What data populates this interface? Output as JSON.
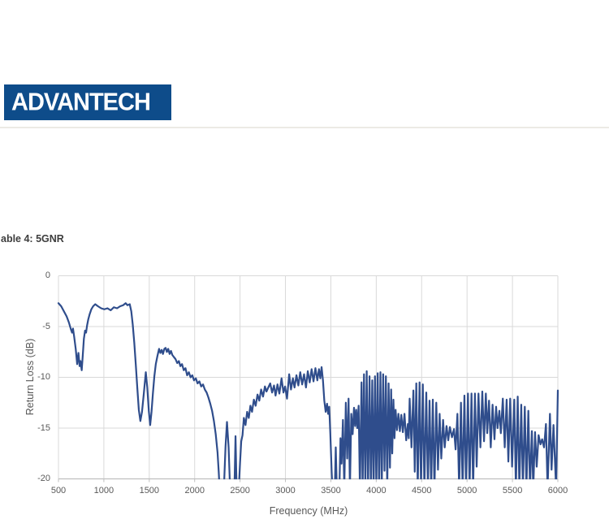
{
  "logo": {
    "text": "ADVANTECH",
    "bg_color": "#0E4C8A",
    "text_color": "#ffffff"
  },
  "caption": {
    "text": "able 4: 5GNR"
  },
  "chart_data": {
    "type": "line",
    "title": "",
    "xlabel": "Frequency (MHz)",
    "ylabel": "Return Loss (dB)",
    "xlim": [
      500,
      6000
    ],
    "ylim": [
      -20,
      0
    ],
    "x_ticks": [
      500,
      1000,
      1500,
      2000,
      2500,
      3000,
      3500,
      4000,
      4500,
      5000,
      5500,
      6000
    ],
    "y_ticks": [
      0,
      -5,
      -10,
      -15,
      -20
    ],
    "grid": true,
    "legend": "none",
    "line_color": "#2F4D8C",
    "gridline_color": "#D9D9D9",
    "axis_color": "#BFBFBF",
    "tick_label_color": "#595959",
    "clip_note": "values of -21 represent dips clipped below the -20 dB axis minimum",
    "points": [
      [
        500,
        -2.7
      ],
      [
        530,
        -3.0
      ],
      [
        560,
        -3.5
      ],
      [
        590,
        -4.0
      ],
      [
        615,
        -4.6
      ],
      [
        638,
        -5.3
      ],
      [
        650,
        -5.6
      ],
      [
        660,
        -5.2
      ],
      [
        673,
        -6.0
      ],
      [
        690,
        -7.2
      ],
      [
        706,
        -8.7
      ],
      [
        720,
        -7.6
      ],
      [
        733,
        -8.9
      ],
      [
        742,
        -8.4
      ],
      [
        756,
        -9.3
      ],
      [
        768,
        -7.8
      ],
      [
        780,
        -6.2
      ],
      [
        793,
        -5.4
      ],
      [
        804,
        -5.6
      ],
      [
        815,
        -4.9
      ],
      [
        828,
        -4.3
      ],
      [
        843,
        -3.8
      ],
      [
        862,
        -3.3
      ],
      [
        882,
        -3.0
      ],
      [
        905,
        -2.8
      ],
      [
        935,
        -3.0
      ],
      [
        970,
        -3.2
      ],
      [
        1005,
        -3.3
      ],
      [
        1040,
        -3.2
      ],
      [
        1075,
        -3.4
      ],
      [
        1110,
        -3.1
      ],
      [
        1145,
        -3.2
      ],
      [
        1180,
        -3.0
      ],
      [
        1212,
        -2.9
      ],
      [
        1240,
        -2.7
      ],
      [
        1260,
        -2.9
      ],
      [
        1285,
        -2.8
      ],
      [
        1302,
        -3.5
      ],
      [
        1318,
        -4.8
      ],
      [
        1335,
        -6.6
      ],
      [
        1352,
        -8.8
      ],
      [
        1368,
        -11.0
      ],
      [
        1385,
        -13.2
      ],
      [
        1402,
        -14.3
      ],
      [
        1420,
        -13.4
      ],
      [
        1440,
        -11.6
      ],
      [
        1462,
        -9.5
      ],
      [
        1478,
        -11.0
      ],
      [
        1495,
        -13.3
      ],
      [
        1510,
        -14.7
      ],
      [
        1525,
        -13.4
      ],
      [
        1540,
        -11.6
      ],
      [
        1556,
        -9.9
      ],
      [
        1572,
        -8.7
      ],
      [
        1590,
        -7.9
      ],
      [
        1608,
        -7.2
      ],
      [
        1623,
        -7.6
      ],
      [
        1637,
        -7.3
      ],
      [
        1651,
        -7.7
      ],
      [
        1666,
        -7.2
      ],
      [
        1680,
        -7.1
      ],
      [
        1694,
        -7.5
      ],
      [
        1709,
        -7.2
      ],
      [
        1724,
        -7.7
      ],
      [
        1739,
        -7.4
      ],
      [
        1754,
        -7.8
      ],
      [
        1771,
        -8.0
      ],
      [
        1789,
        -8.2
      ],
      [
        1808,
        -8.6
      ],
      [
        1826,
        -8.4
      ],
      [
        1843,
        -8.9
      ],
      [
        1861,
        -8.7
      ],
      [
        1880,
        -9.3
      ],
      [
        1899,
        -9.1
      ],
      [
        1917,
        -9.8
      ],
      [
        1936,
        -9.5
      ],
      [
        1955,
        -10.0
      ],
      [
        1974,
        -9.8
      ],
      [
        1993,
        -10.3
      ],
      [
        2013,
        -10.1
      ],
      [
        2032,
        -10.6
      ],
      [
        2052,
        -10.4
      ],
      [
        2072,
        -10.9
      ],
      [
        2092,
        -10.7
      ],
      [
        2112,
        -11.2
      ],
      [
        2132,
        -11.5
      ],
      [
        2152,
        -12.0
      ],
      [
        2172,
        -12.6
      ],
      [
        2192,
        -13.3
      ],
      [
        2212,
        -14.3
      ],
      [
        2232,
        -15.6
      ],
      [
        2252,
        -17.4
      ],
      [
        2265,
        -19.3
      ],
      [
        2275,
        -21
      ],
      [
        2322,
        -21
      ],
      [
        2340,
        -16.8
      ],
      [
        2356,
        -14.4
      ],
      [
        2374,
        -16.9
      ],
      [
        2390,
        -21
      ],
      [
        2438,
        -21
      ],
      [
        2450,
        -15.8
      ],
      [
        2462,
        -21
      ],
      [
        2486,
        -21
      ],
      [
        2500,
        -18.4
      ],
      [
        2513,
        -16.3
      ],
      [
        2527,
        -15.7
      ],
      [
        2542,
        -14.0
      ],
      [
        2560,
        -14.7
      ],
      [
        2578,
        -13.4
      ],
      [
        2596,
        -14.0
      ],
      [
        2614,
        -12.8
      ],
      [
        2632,
        -13.4
      ],
      [
        2652,
        -12.2
      ],
      [
        2672,
        -12.8
      ],
      [
        2692,
        -11.7
      ],
      [
        2712,
        -12.3
      ],
      [
        2732,
        -11.2
      ],
      [
        2753,
        -11.9
      ],
      [
        2774,
        -10.9
      ],
      [
        2791,
        -11.4
      ],
      [
        2811,
        -11.0
      ],
      [
        2832,
        -10.6
      ],
      [
        2853,
        -11.5
      ],
      [
        2874,
        -10.8
      ],
      [
        2891,
        -11.8
      ],
      [
        2912,
        -10.7
      ],
      [
        2933,
        -11.6
      ],
      [
        2957,
        -10.1
      ],
      [
        2978,
        -11.5
      ],
      [
        2996,
        -10.9
      ],
      [
        3017,
        -12.1
      ],
      [
        3041,
        -9.7
      ],
      [
        3061,
        -11.2
      ],
      [
        3082,
        -10.1
      ],
      [
        3100,
        -11.0
      ],
      [
        3121,
        -9.8
      ],
      [
        3142,
        -10.8
      ],
      [
        3163,
        -9.5
      ],
      [
        3184,
        -10.7
      ],
      [
        3205,
        -9.7
      ],
      [
        3226,
        -11.0
      ],
      [
        3246,
        -9.4
      ],
      [
        3267,
        -10.5
      ],
      [
        3288,
        -9.2
      ],
      [
        3309,
        -10.4
      ],
      [
        3330,
        -9.1
      ],
      [
        3351,
        -10.3
      ],
      [
        3369,
        -9.2
      ],
      [
        3384,
        -10.1
      ],
      [
        3398,
        -9.0
      ],
      [
        3413,
        -10.3
      ],
      [
        3428,
        -12.3
      ],
      [
        3443,
        -13.4
      ],
      [
        3458,
        -12.6
      ],
      [
        3470,
        -13.6
      ],
      [
        3482,
        -12.9
      ],
      [
        3494,
        -15.5
      ],
      [
        3509,
        -19.3
      ],
      [
        3518,
        -21
      ],
      [
        3544,
        -21
      ],
      [
        3554,
        -16.9
      ],
      [
        3566,
        -21
      ],
      [
        3594,
        -21
      ],
      [
        3606,
        -16.0
      ],
      [
        3618,
        -18.5
      ],
      [
        3633,
        -14.2
      ],
      [
        3648,
        -21
      ],
      [
        3665,
        -12.5
      ],
      [
        3680,
        -18.0
      ],
      [
        3695,
        -12.1
      ],
      [
        3710,
        -21
      ],
      [
        3725,
        -13.6
      ],
      [
        3740,
        -15.6
      ],
      [
        3755,
        -13.0
      ],
      [
        3767,
        -14.8
      ],
      [
        3779,
        -13.2
      ],
      [
        3791,
        -15.0
      ],
      [
        3806,
        -12.8
      ],
      [
        3820,
        -21
      ],
      [
        3838,
        -10.5
      ],
      [
        3850,
        -21
      ],
      [
        3865,
        -9.7
      ],
      [
        3880,
        -21
      ],
      [
        3895,
        -9.4
      ],
      [
        3910,
        -21
      ],
      [
        3926,
        -9.9
      ],
      [
        3941,
        -21
      ],
      [
        3956,
        -10.3
      ],
      [
        3971,
        -21
      ],
      [
        3986,
        -9.9
      ],
      [
        4001,
        -21
      ],
      [
        4016,
        -9.6
      ],
      [
        4031,
        -21
      ],
      [
        4046,
        -9.5
      ],
      [
        4061,
        -21
      ],
      [
        4076,
        -9.7
      ],
      [
        4091,
        -19.2
      ],
      [
        4106,
        -9.9
      ],
      [
        4121,
        -21
      ],
      [
        4136,
        -10.6
      ],
      [
        4151,
        -18.9
      ],
      [
        4164,
        -11.2
      ],
      [
        4176,
        -17.5
      ],
      [
        4189,
        -12.2
      ],
      [
        4201,
        -16.0
      ],
      [
        4213,
        -13.2
      ],
      [
        4228,
        -15.2
      ],
      [
        4244,
        -13.6
      ],
      [
        4260,
        -15.3
      ],
      [
        4276,
        -13.7
      ],
      [
        4293,
        -15.4
      ],
      [
        4311,
        -13.6
      ],
      [
        4330,
        -16.2
      ],
      [
        4348,
        -14.6
      ],
      [
        4358,
        -16.0
      ],
      [
        4368,
        -12.1
      ],
      [
        4388,
        -16.9
      ],
      [
        4409,
        -11.3
      ],
      [
        4424,
        -19.3
      ],
      [
        4441,
        -10.6
      ],
      [
        4457,
        -21
      ],
      [
        4477,
        -10.5
      ],
      [
        4493,
        -21
      ],
      [
        4513,
        -10.7
      ],
      [
        4530,
        -21
      ],
      [
        4551,
        -11.5
      ],
      [
        4569,
        -21
      ],
      [
        4587,
        -12.3
      ],
      [
        4605,
        -21
      ],
      [
        4623,
        -12.2
      ],
      [
        4641,
        -21
      ],
      [
        4661,
        -12.5
      ],
      [
        4680,
        -19.1
      ],
      [
        4698,
        -13.6
      ],
      [
        4716,
        -18.0
      ],
      [
        4736,
        -14.2
      ],
      [
        4754,
        -16.9
      ],
      [
        4774,
        -14.8
      ],
      [
        4793,
        -16.2
      ],
      [
        4811,
        -14.9
      ],
      [
        4834,
        -15.9
      ],
      [
        4856,
        -15.1
      ],
      [
        4874,
        -17.1
      ],
      [
        4894,
        -13.6
      ],
      [
        4913,
        -21
      ],
      [
        4933,
        -12.5
      ],
      [
        4951,
        -21
      ],
      [
        4971,
        -11.8
      ],
      [
        4989,
        -21
      ],
      [
        5010,
        -11.6
      ],
      [
        5028,
        -21
      ],
      [
        5049,
        -11.6
      ],
      [
        5067,
        -21
      ],
      [
        5087,
        -11.6
      ],
      [
        5106,
        -18.8
      ],
      [
        5126,
        -11.6
      ],
      [
        5147,
        -16.9
      ],
      [
        5168,
        -11.4
      ],
      [
        5187,
        -16.3
      ],
      [
        5207,
        -11.6
      ],
      [
        5222,
        -15.5
      ],
      [
        5242,
        -12.3
      ],
      [
        5261,
        -16.9
      ],
      [
        5281,
        -12.7
      ],
      [
        5302,
        -16.1
      ],
      [
        5320,
        -12.9
      ],
      [
        5336,
        -15.0
      ],
      [
        5356,
        -13.3
      ],
      [
        5372,
        -15.5
      ],
      [
        5394,
        -12.1
      ],
      [
        5415,
        -16.9
      ],
      [
        5436,
        -12.2
      ],
      [
        5455,
        -18.3
      ],
      [
        5475,
        -12.1
      ],
      [
        5496,
        -18.8
      ],
      [
        5520,
        -12.2
      ],
      [
        5538,
        -21
      ],
      [
        5558,
        -11.9
      ],
      [
        5576,
        -21
      ],
      [
        5597,
        -12.7
      ],
      [
        5615,
        -21
      ],
      [
        5636,
        -12.9
      ],
      [
        5654,
        -21
      ],
      [
        5675,
        -13.3
      ],
      [
        5693,
        -21
      ],
      [
        5714,
        -15.3
      ],
      [
        5729,
        -21
      ],
      [
        5749,
        -15.4
      ],
      [
        5767,
        -18.8
      ],
      [
        5788,
        -15.7
      ],
      [
        5809,
        -16.6
      ],
      [
        5827,
        -16.1
      ],
      [
        5848,
        -16.9
      ],
      [
        5869,
        -14.6
      ],
      [
        5887,
        -21
      ],
      [
        5913,
        -13.6
      ],
      [
        5931,
        -19.1
      ],
      [
        5952,
        -14.7
      ],
      [
        5981,
        -21
      ],
      [
        6000,
        -11.3
      ]
    ]
  }
}
